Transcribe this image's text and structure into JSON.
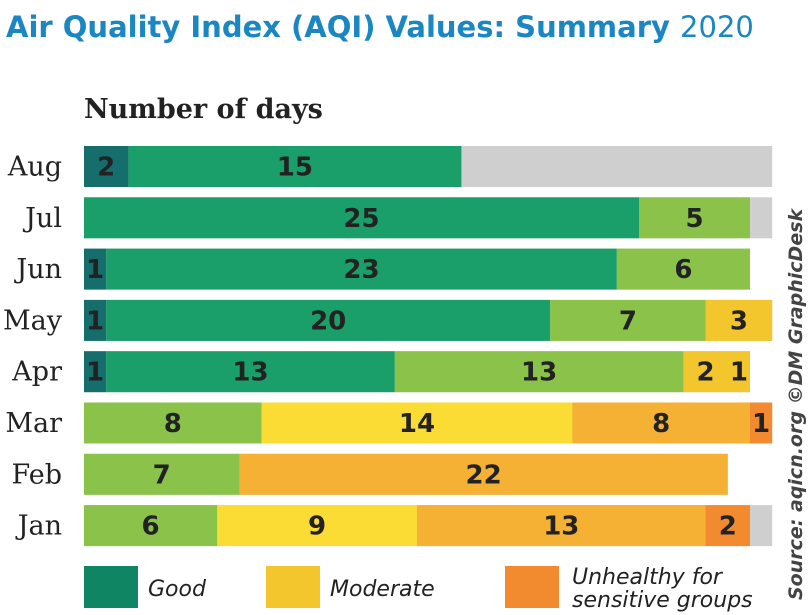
{
  "title": {
    "main": "Air Quality Index (AQI) Values: Summary",
    "year": "2020"
  },
  "source": "Source: aqicn.org  ©DM GraphicDesk",
  "chart_data": {
    "type": "bar",
    "orientation": "horizontal",
    "stacked": true,
    "xlabel": "Number of days",
    "categories": [
      "Aug",
      "Jul",
      "Jun",
      "May",
      "Apr",
      "Mar",
      "Feb",
      "Jan"
    ],
    "total_days": [
      31,
      31,
      30,
      31,
      30,
      31,
      29,
      31
    ],
    "xlim": [
      0,
      31
    ],
    "segment_colors": {
      "good_dark": "#156e6b",
      "good": "#1a9e6a",
      "good_light": "#8bc34a",
      "moderate": "#fbdc34",
      "moderate_dark": "#f2c62c",
      "usg": "#f5b133",
      "usg_dark": "#f28b30",
      "missing": "#cfcfcf"
    },
    "bars": [
      {
        "month": "Aug",
        "segments": [
          {
            "value": 2,
            "color": "good_dark"
          },
          {
            "value": 15,
            "color": "good"
          }
        ]
      },
      {
        "month": "Jul",
        "segments": [
          {
            "value": 25,
            "color": "good"
          },
          {
            "value": 5,
            "color": "good_light"
          }
        ]
      },
      {
        "month": "Jun",
        "segments": [
          {
            "value": 1,
            "color": "good_dark"
          },
          {
            "value": 23,
            "color": "good"
          },
          {
            "value": 6,
            "color": "good_light"
          }
        ]
      },
      {
        "month": "May",
        "segments": [
          {
            "value": 1,
            "color": "good_dark"
          },
          {
            "value": 20,
            "color": "good"
          },
          {
            "value": 7,
            "color": "good_light"
          },
          {
            "value": 3,
            "color": "moderate_dark"
          }
        ]
      },
      {
        "month": "Apr",
        "segments": [
          {
            "value": 1,
            "color": "good_dark"
          },
          {
            "value": 13,
            "color": "good"
          },
          {
            "value": 13,
            "color": "good_light"
          },
          {
            "value": 2,
            "color": "moderate_dark"
          },
          {
            "value": 1,
            "color": "moderate_dark"
          }
        ]
      },
      {
        "month": "Mar",
        "segments": [
          {
            "value": 8,
            "color": "good_light"
          },
          {
            "value": 14,
            "color": "moderate"
          },
          {
            "value": 8,
            "color": "usg"
          },
          {
            "value": 1,
            "color": "usg_dark"
          }
        ]
      },
      {
        "month": "Feb",
        "segments": [
          {
            "value": 7,
            "color": "good_light"
          },
          {
            "value": 22,
            "color": "usg"
          }
        ]
      },
      {
        "month": "Jan",
        "segments": [
          {
            "value": 6,
            "color": "good_light"
          },
          {
            "value": 9,
            "color": "moderate"
          },
          {
            "value": 13,
            "color": "usg"
          },
          {
            "value": 2,
            "color": "usg_dark"
          }
        ]
      }
    ],
    "legend": [
      {
        "label": "Good",
        "color": "#0f8564"
      },
      {
        "label": "Moderate",
        "color": "#f2c62c"
      },
      {
        "label": "Unhealthy for sensitive groups",
        "color": "#f28b30"
      }
    ]
  }
}
